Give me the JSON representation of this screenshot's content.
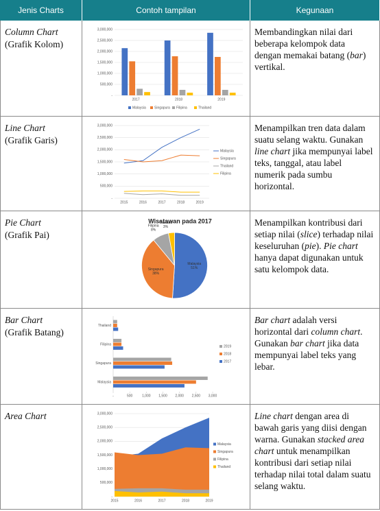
{
  "header": [
    "Jenis Charts",
    "Contoh tampilan",
    "Kegunaan"
  ],
  "rows": [
    {
      "name": "Column Chart",
      "subtitle": "(Grafik Kolom)",
      "description": [
        "Membandingkan nilai dari beberapa kelompok data dengan memakai batang (",
        {
          "em": "bar"
        },
        ") vertikal."
      ],
      "chart": {
        "type": "bar",
        "categories": [
          "2017",
          "2018",
          "2019"
        ],
        "series": [
          {
            "name": "Malaysia",
            "color": "#4472c4",
            "values": [
              2150000,
              2500000,
              2850000
            ]
          },
          {
            "name": "Singapura",
            "color": "#ed7d31",
            "values": [
              1550000,
              1780000,
              1750000
            ]
          },
          {
            "name": "Filipina",
            "color": "#a5a5a5",
            "values": [
              300000,
              250000,
              250000
            ]
          },
          {
            "name": "Thailand",
            "color": "#ffc000",
            "values": [
              150000,
              120000,
              120000
            ]
          }
        ],
        "ylim": [
          0,
          3000000
        ],
        "yticks": [
          {
            "value": 0,
            "label": "-"
          },
          {
            "value": 500000,
            "label": "500,000"
          },
          {
            "value": 1000000,
            "label": "1,000,000"
          },
          {
            "value": 1500000,
            "label": "1,500,000"
          },
          {
            "value": 2000000,
            "label": "2,000,000"
          },
          {
            "value": 2500000,
            "label": "2,500,000"
          },
          {
            "value": 3000000,
            "label": "3,000,000"
          }
        ],
        "grid": true,
        "legend": "bottom"
      }
    },
    {
      "name": "Line Chart",
      "subtitle": "(Grafik Garis)",
      "description": [
        "Menampilkan tren data dalam suatu selang waktu. Gunakan ",
        {
          "em": "line chart"
        },
        " jika mempunyai label teks, tanggal, atau label numerik pada sumbu horizontal."
      ],
      "chart": {
        "type": "line",
        "categories": [
          "2015",
          "2016",
          "2017",
          "2018",
          "2019"
        ],
        "series": [
          {
            "name": "Malaysia",
            "color": "#4472c4",
            "values": [
              1450000,
              1550000,
              2100000,
              2500000,
              2850000
            ]
          },
          {
            "name": "Singapura",
            "color": "#ed7d31",
            "values": [
              1600000,
              1500000,
              1550000,
              1780000,
              1750000
            ]
          },
          {
            "name": "Thailand",
            "color": "#a5a5a5",
            "values": [
              200000,
              150000,
              180000,
              120000,
              120000
            ]
          },
          {
            "name": "Filipina",
            "color": "#ffc000",
            "values": [
              280000,
              300000,
              300000,
              250000,
              250000
            ]
          }
        ],
        "ylim": [
          0,
          3000000
        ],
        "yticks": [
          {
            "value": 0,
            "label": "-"
          },
          {
            "value": 500000,
            "label": "500,000"
          },
          {
            "value": 1000000,
            "label": "1,000,000"
          },
          {
            "value": 1500000,
            "label": "1,500,000"
          },
          {
            "value": 2000000,
            "label": "2,000,000"
          },
          {
            "value": 2500000,
            "label": "2,500,000"
          },
          {
            "value": 3000000,
            "label": "3,000,000"
          }
        ],
        "grid": true,
        "legend": "right"
      }
    },
    {
      "name": "Pie Chart",
      "subtitle": "(Grafik Pai)",
      "description": [
        "Menampilkan kontribusi dari setiap nilai (",
        {
          "em": "slice"
        },
        ") terhadap nilai keseluruhan (",
        {
          "em": "pie"
        },
        "). ",
        {
          "em": "Pie chart"
        },
        " hanya dapat digunakan untuk satu kelompok data."
      ],
      "chart": {
        "type": "pie",
        "title": "Wisatawan pada 2017",
        "categories": [
          "Malaysia",
          "Singapura",
          "Filipina",
          "Thailand"
        ],
        "values": [
          51,
          38,
          8,
          3
        ],
        "value_labels": [
          "51%",
          "38%",
          "8%",
          "3%"
        ],
        "colors": [
          "#4472c4",
          "#ed7d31",
          "#a5a5a5",
          "#ffc000"
        ]
      }
    },
    {
      "name": "Bar Chart",
      "subtitle": "(Grafik Batang)",
      "description": [
        {
          "em": "Bar chart"
        },
        " adalah versi horizontal dari ",
        {
          "em": "column chart"
        },
        ". Gunakan ",
        {
          "em": "bar chart"
        },
        " jika data mempunyai label teks yang lebar."
      ],
      "chart": {
        "type": "hbar",
        "categories": [
          "Thailand",
          "Filipina",
          "Singapura",
          "Malaysia"
        ],
        "series": [
          {
            "name": "2019",
            "color": "#a5a5a5",
            "values": [
              120,
              250,
              1750,
              2850
            ]
          },
          {
            "name": "2018",
            "color": "#ed7d31",
            "values": [
              120,
              250,
              1780,
              2500
            ]
          },
          {
            "name": "2017",
            "color": "#4472c4",
            "values": [
              150,
              300,
              1550,
              2150
            ]
          }
        ],
        "xlim": [
          0,
          3000
        ],
        "xticks": [
          {
            "value": 0,
            "label": "-"
          },
          500,
          {
            "value": 1000,
            "label": "1,000"
          },
          {
            "value": 1500,
            "label": "1,500"
          },
          {
            "value": 2000,
            "label": "2,000"
          },
          {
            "value": 2500,
            "label": "2,500"
          },
          {
            "value": 3000,
            "label": "3,000"
          }
        ],
        "grid": false,
        "legend": "right"
      }
    },
    {
      "name": "Area Chart",
      "subtitle": null,
      "description": [
        {
          "em": "Line chart"
        },
        " dengan area di bawah garis yang diisi dengan warna. Gunakan ",
        {
          "em": "stacked area chart"
        },
        " untuk menampilkan kontribusi dari setiap nilai terhadap nilai total dalam suatu selang waktu."
      ],
      "chart": {
        "type": "area",
        "categories": [
          "2015",
          "2016",
          "2017",
          "2018",
          "2019"
        ],
        "series": [
          {
            "name": "Malaysia",
            "color": "#4472c4",
            "values": [
              1450000,
              1550000,
              2100000,
              2500000,
              2850000
            ]
          },
          {
            "name": "Singapura",
            "color": "#ed7d31",
            "values": [
              1600000,
              1500000,
              1550000,
              1780000,
              1750000
            ]
          },
          {
            "name": "Filipina",
            "color": "#a5a5a5",
            "values": [
              280000,
              300000,
              300000,
              250000,
              250000
            ]
          },
          {
            "name": "Thailand",
            "color": "#ffc000",
            "values": [
              200000,
              150000,
              180000,
              120000,
              120000
            ]
          }
        ],
        "ylim": [
          0,
          3000000
        ],
        "yticks": [
          {
            "value": 0,
            "label": "-"
          },
          {
            "value": 500000,
            "label": "500,000"
          },
          {
            "value": 1000000,
            "label": "1,000,000"
          },
          {
            "value": 1500000,
            "label": "1,500,000"
          },
          {
            "value": 2000000,
            "label": "2,000,000"
          },
          {
            "value": 2500000,
            "label": "2,500,000"
          },
          {
            "value": 3000000,
            "label": "3,000,000"
          }
        ],
        "grid": true,
        "legend": "right"
      }
    }
  ]
}
